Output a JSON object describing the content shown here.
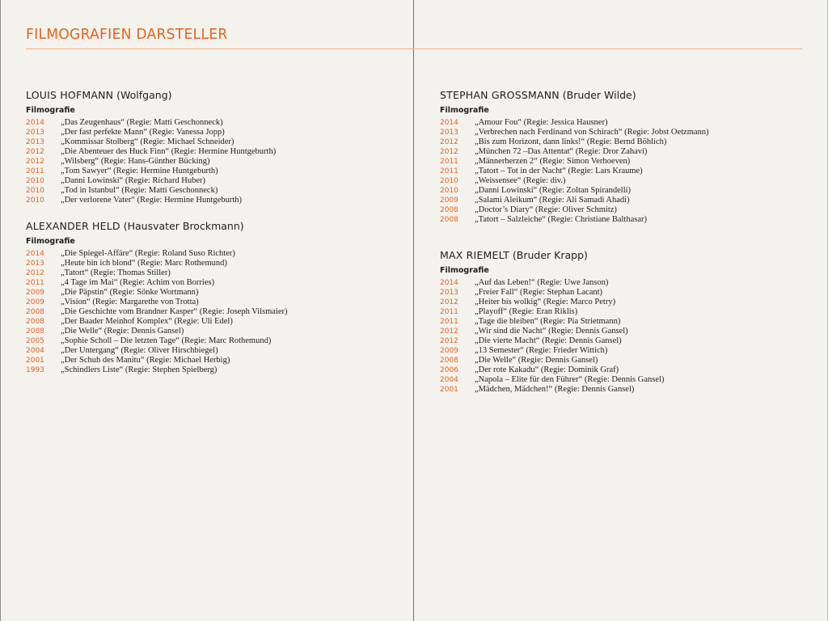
{
  "page_title": "FILMOGRAFIEN DARSTELLER",
  "accent_color": "#e8621f",
  "sections": [
    {
      "name": "LOUIS HOFMANN",
      "role": "(Wolfgang)",
      "subheading": "Filmografie",
      "films": [
        {
          "year": "2014",
          "title": "„Das Zeugenhaus“ (Regie: Matti Geschonneck)"
        },
        {
          "year": "2013",
          "title": "„Der fast perfekte Mann“ (Regie: Vanessa Jopp)"
        },
        {
          "year": "2013",
          "title": "„Kommissar Stolberg“ (Regie: Michael Schneider)"
        },
        {
          "year": "2012",
          "title": "„Die Abenteuer des Huck Finn“ (Regie: Hermine Huntgeburth)"
        },
        {
          "year": "2012",
          "title": "„Wilsberg“ (Regie: Hans-Günther Bücking)"
        },
        {
          "year": "2011",
          "title": "„Tom Sawyer“ (Regie: Hermine Huntgeburth)"
        },
        {
          "year": "2010",
          "title": "„Danni Lowinski“ (Regie: Richard Huber)"
        },
        {
          "year": "2010",
          "title": "„Tod in Istanbul“ (Regie: Matti Geschonneck)"
        },
        {
          "year": "2010",
          "title": "„Der verlorene Vater“ (Regie: Hermine Huntgeburth)"
        }
      ]
    },
    {
      "name": "ALEXANDER HELD",
      "role": "(Hausvater Brockmann)",
      "subheading": "Filmografie",
      "films": [
        {
          "year": "2014",
          "title": "„Die Spiegel-Affäre“ (Regie: Roland Suso Richter)"
        },
        {
          "year": "2013",
          "title": "„Heute bin ich blond“ (Regie: Marc Rothemund)"
        },
        {
          "year": "2012",
          "title": "„Tatort“ (Regie: Thomas Stiller)"
        },
        {
          "year": "2011",
          "title": "„4 Tage im Mai“ (Regie: Achim von Borries)"
        },
        {
          "year": "2009",
          "title": "„Die Päpstin“ (Regie: Sönke Wortmann)"
        },
        {
          "year": "2009",
          "title": "„Vision“ (Regie: Margarethe von Trotta)"
        },
        {
          "year": "2008",
          "title": "„Die Geschichte vom Brandner Kasper“ (Regie: Joseph Vilsmaier)"
        },
        {
          "year": "2008",
          "title": "„Der Baader Meinhof Komplex“ (Regie: Uli Edel)"
        },
        {
          "year": "2008",
          "title": "„Die Welle“ (Regie: Dennis Gansel)"
        },
        {
          "year": "2005",
          "title": "„Sophie Scholl – Die letzten Tage“ (Regie: Marc Rothemund)"
        },
        {
          "year": "2004",
          "title": "„Der Untergang“ (Regie: Oliver Hirschbiegel)"
        },
        {
          "year": "2001",
          "title": "„Der Schuh des Manitu“ (Regie: Michael Herbig)"
        },
        {
          "year": "1993",
          "title": "„Schindlers Liste“ (Regie: Stephen Spielberg)"
        }
      ]
    },
    {
      "name": "STEPHAN GROSSMANN",
      "role": "(Bruder Wilde)",
      "subheading": "Filmografie",
      "films": [
        {
          "year": "2014",
          "title": "„Amour Fou“ (Regie: Jessica Hausner)"
        },
        {
          "year": "2013",
          "title": "„Verbrechen nach Ferdinand von Schirach“ (Regie: Jobst Oetzmann)"
        },
        {
          "year": "2012",
          "title": "„Bis zum Horizont, dann links!“ (Regie: Bernd Böhlich)"
        },
        {
          "year": "2012",
          "title": "„München 72 –Das Attentat“ (Regie: Dror Zahavi)"
        },
        {
          "year": "2011",
          "title": "„Männerherzen 2“ (Regie: Simon Verhoeven)"
        },
        {
          "year": "2011",
          "title": "„Tatort – Tot in der Nacht“ (Regie: Lars Kraume)"
        },
        {
          "year": "2010",
          "title": "„Weissensee“ (Regie: div.)"
        },
        {
          "year": "2010",
          "title": "„Danni Lowinski“ (Regie: Zoltan Spirandelli)"
        },
        {
          "year": "2009",
          "title": "„Salami Aleikum“ (Regie: Ali Samadi Ahadi)"
        },
        {
          "year": "2008",
          "title": "„Doctor’s Diary“ (Regie: Oliver Schmitz)"
        },
        {
          "year": "2008",
          "title": "„Tatort – Salzleiche“ (Regie: Christiane Balthasar)"
        }
      ]
    },
    {
      "name": "MAX RIEMELT",
      "role": "(Bruder Krapp)",
      "subheading": "Filmografie",
      "films": [
        {
          "year": "2014",
          "title": "„Auf das Leben!“ (Regie: Uwe Janson)"
        },
        {
          "year": "2013",
          "title": "„Freier Fall“ (Regie: Stephan Lacant)"
        },
        {
          "year": "2012",
          "title": "„Heiter bis wolkig“ (Regie: Marco Petry)"
        },
        {
          "year": "2011",
          "title": "„Playoff“ (Regie: Eran Riklis)"
        },
        {
          "year": "2011",
          "title": "„Tage die bleiben“ (Regie: Pia Strietmann)"
        },
        {
          "year": "2012",
          "title": "„Wir sind die Nacht“ (Regie: Dennis Gansel)"
        },
        {
          "year": "2012",
          "title": "„Die vierte Macht“ (Regie: Dennis Gansel)"
        },
        {
          "year": "2009",
          "title": "„13 Semester“ (Regie: Frieder Wittich)"
        },
        {
          "year": "2008",
          "title": "„Die Welle“ (Regie: Dennis Gansel)"
        },
        {
          "year": "2006",
          "title": "„Der rote Kakadu“ (Regie: Dominik Graf)"
        },
        {
          "year": "2004",
          "title": "„Napola – Elite für den Führer“ (Regie: Dennis Gansel)"
        },
        {
          "year": "2001",
          "title": "„Mädchen, Mädchen!“ (Regie: Dennis Gansel)"
        }
      ]
    }
  ]
}
